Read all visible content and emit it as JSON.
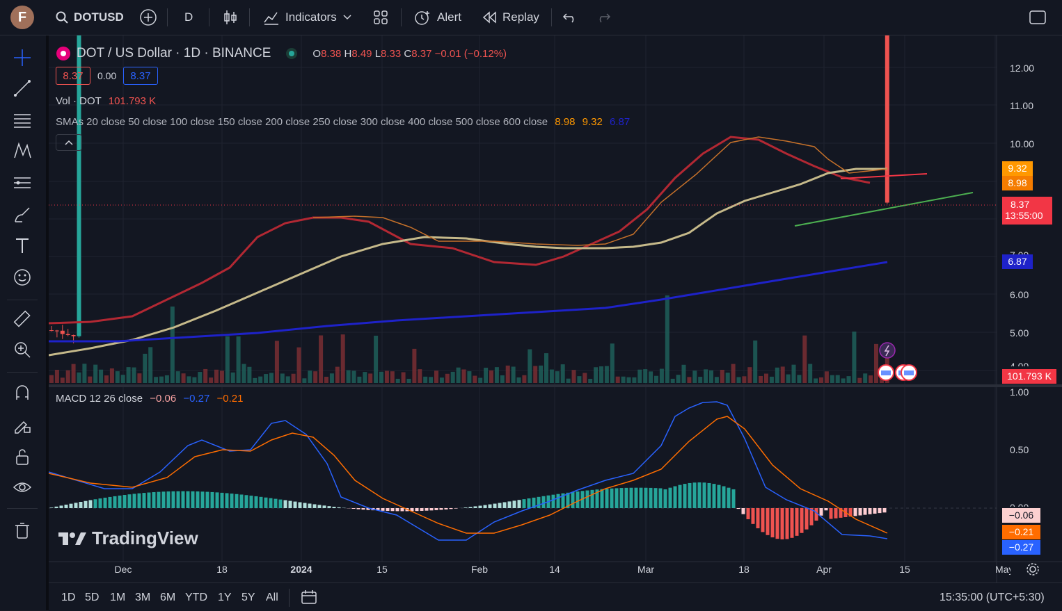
{
  "top_bar": {
    "avatar_letter": "F",
    "symbol": "DOTUSD",
    "interval": "D",
    "indicators_label": "Indicators",
    "alert_label": "Alert",
    "replay_label": "Replay"
  },
  "legend": {
    "title": "DOT / US Dollar · 1D · BINANCE",
    "ohlc": {
      "o_label": "O",
      "o": "8.38",
      "h_label": "H",
      "h": "8.49",
      "l_label": "L",
      "l": "8.33",
      "c_label": "C",
      "c": "8.37",
      "change": "−0.01 (−0.12%)"
    },
    "bid": "8.37",
    "spread": "0.00",
    "ask": "8.37",
    "vol_label": "Vol · DOT",
    "vol_value": "101.793 K",
    "sma_label": "SMAs 20 close 50 close 100 close 150 close 200 close 250 close 300 close 400 close 500 close 600 close",
    "sma_values": [
      "8.98",
      "9.32",
      "6.87"
    ],
    "macd_label": "MACD 12 26 close",
    "macd_values": [
      "−0.06",
      "−0.27",
      "−0.21"
    ],
    "watermark": "TradingView"
  },
  "price_axis": {
    "ticks": [
      "12.00",
      "11.00",
      "10.00",
      "6.00",
      "5.00",
      "4.00"
    ],
    "labels": {
      "sma50": "9.32",
      "sma20": "8.98",
      "last": "8.37",
      "countdown": "13:55:00",
      "sma200": "6.87",
      "volume": "101.793 K"
    },
    "partial_tick_7": "7.00"
  },
  "macd_axis": {
    "ticks": [
      "1.00",
      "0.50",
      "0.00"
    ],
    "labels": {
      "hist": "−0.06",
      "signal": "−0.21",
      "macd": "−0.27"
    }
  },
  "time_axis": [
    "Dec",
    "18",
    "2024",
    "15",
    "Feb",
    "14",
    "Mar",
    "18",
    "Apr",
    "15",
    "May"
  ],
  "bottom_bar": {
    "ranges": [
      "1D",
      "5D",
      "1M",
      "3M",
      "6M",
      "YTD",
      "1Y",
      "5Y",
      "All"
    ],
    "clock": "15:35:00 (UTC+5:30)"
  },
  "colors": {
    "up": "#26a69a",
    "down": "#ef5350",
    "sma20": "#b22833",
    "sma50": "#c5b98a",
    "sma200": "#1e22c9",
    "orange_line": "#c6712a",
    "trend_green": "#4caf50",
    "trend_red": "#f23645",
    "macd_line": "#2962ff",
    "signal_line": "#ff6d00"
  }
}
